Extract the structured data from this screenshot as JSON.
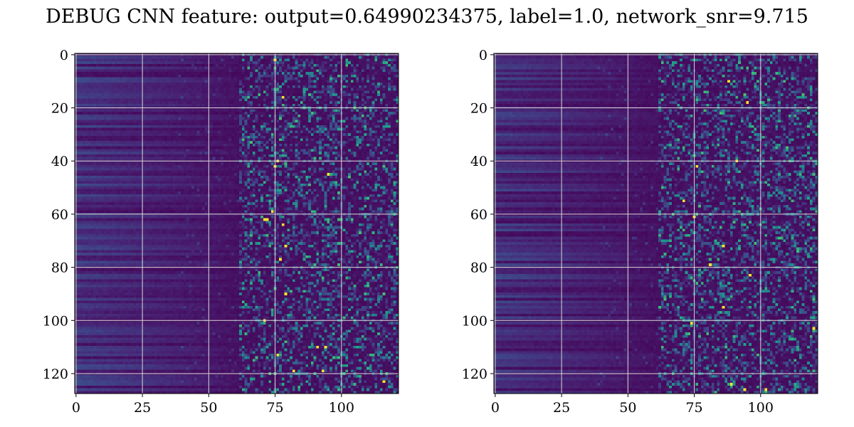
{
  "title": "DEBUG CNN feature: output=0.64990234375, label=1.0, network_snr=9.715",
  "colors": {
    "colormap": "viridis",
    "grid": "#d9d9d9",
    "background": "#ffffff",
    "axes_edge": "#000000"
  },
  "chart_data": [
    {
      "type": "heatmap",
      "title": "",
      "xlabel": "",
      "ylabel": "",
      "rows": 128,
      "cols": 122,
      "xlim": [
        -0.5,
        121.5
      ],
      "ylim": [
        127.5,
        -0.5
      ],
      "xticks": [
        0,
        25,
        50,
        75,
        100
      ],
      "yticks": [
        0,
        20,
        40,
        60,
        80,
        100,
        120
      ],
      "grid": true,
      "colormap": "viridis",
      "value_range": [
        0,
        1
      ],
      "texture_seed": 7,
      "hot_pixels": [
        [
          2,
          75
        ],
        [
          16,
          78
        ],
        [
          40,
          76
        ],
        [
          42,
          75
        ],
        [
          45,
          95
        ],
        [
          59,
          74
        ],
        [
          62,
          71
        ],
        [
          62,
          72
        ],
        [
          64,
          78
        ],
        [
          72,
          79
        ],
        [
          77,
          77
        ],
        [
          90,
          79
        ],
        [
          100,
          71
        ],
        [
          110,
          91
        ],
        [
          110,
          94
        ],
        [
          113,
          76
        ],
        [
          119,
          82
        ],
        [
          119,
          93
        ],
        [
          123,
          116
        ]
      ]
    },
    {
      "type": "heatmap",
      "title": "",
      "xlabel": "",
      "ylabel": "",
      "rows": 128,
      "cols": 122,
      "xlim": [
        -0.5,
        121.5
      ],
      "ylim": [
        127.5,
        -0.5
      ],
      "xticks": [
        0,
        25,
        50,
        75,
        100
      ],
      "yticks": [
        0,
        20,
        40,
        60,
        80,
        100,
        120
      ],
      "grid": true,
      "colormap": "viridis",
      "value_range": [
        0,
        1
      ],
      "texture_seed": 23,
      "hot_pixels": [
        [
          10,
          88
        ],
        [
          18,
          95
        ],
        [
          40,
          91
        ],
        [
          42,
          76
        ],
        [
          55,
          71
        ],
        [
          61,
          75
        ],
        [
          72,
          86
        ],
        [
          79,
          81
        ],
        [
          83,
          96
        ],
        [
          95,
          86
        ],
        [
          101,
          74
        ],
        [
          103,
          120
        ],
        [
          124,
          89
        ],
        [
          126,
          94
        ],
        [
          126,
          102
        ]
      ]
    }
  ]
}
